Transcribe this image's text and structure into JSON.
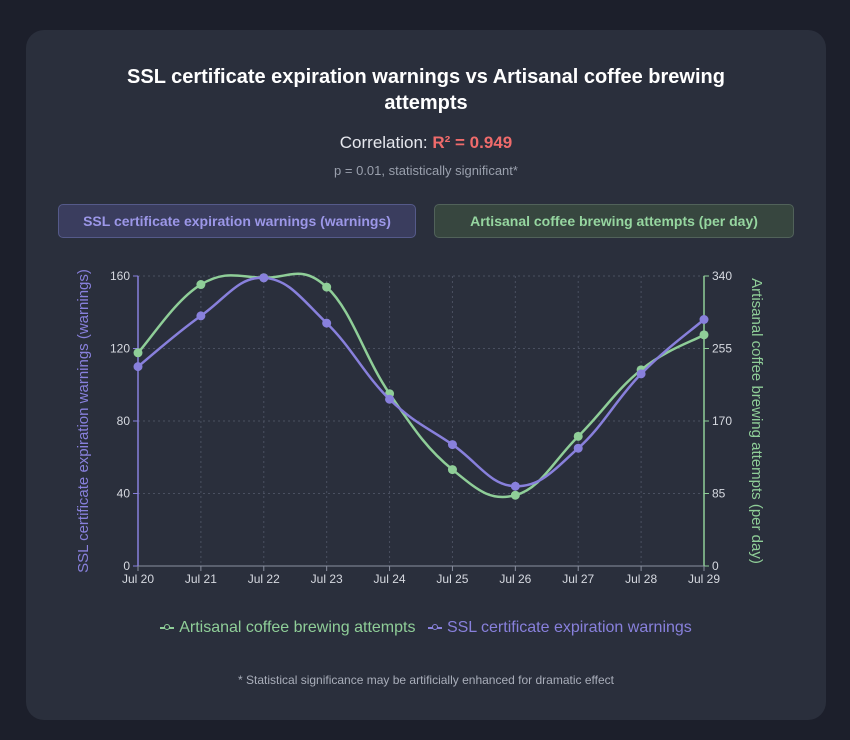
{
  "header": {
    "title": "SSL certificate expiration warnings vs Artisanal coffee brewing attempts",
    "correlation_label": "Correlation:",
    "r_squared": "R² = 0.949",
    "p_value_text": "p = 0.01, statistically significant*"
  },
  "toggles": {
    "ssl_label": "SSL certificate expiration warnings (warnings)",
    "coffee_label": "Artisanal coffee brewing attempts (per day)"
  },
  "colors": {
    "ssl": "#8880dc",
    "coffee": "#8fce98",
    "r_squared": "#ef6b6b"
  },
  "footnote": "* Statistical significance may be artificially enhanced for dramatic effect",
  "chart_data": {
    "type": "line",
    "categories": [
      "Jul 20",
      "Jul 21",
      "Jul 22",
      "Jul 23",
      "Jul 24",
      "Jul 25",
      "Jul 26",
      "Jul 27",
      "Jul 28",
      "Jul 29"
    ],
    "series": [
      {
        "name": "SSL certificate expiration warnings",
        "axis": "left",
        "color": "#8880dc",
        "values": [
          110,
          138,
          159,
          134,
          92,
          67,
          44,
          65,
          106,
          136
        ]
      },
      {
        "name": "Artisanal coffee brewing attempts",
        "axis": "right",
        "color": "#8fce98",
        "values": [
          250,
          330,
          338,
          327,
          202,
          113,
          83,
          152,
          230,
          271
        ]
      }
    ],
    "y_left": {
      "label": "SSL certificate expiration warnings (warnings)",
      "range": [
        0,
        160
      ],
      "ticks": [
        "0",
        "40",
        "80",
        "120",
        "160"
      ]
    },
    "y_right": {
      "label": "Artisanal coffee brewing attempts (per day)",
      "range": [
        0,
        340
      ],
      "ticks": [
        "0",
        "85",
        "170",
        "255",
        "340"
      ]
    },
    "legend": [
      "Artisanal coffee brewing attempts",
      "SSL certificate expiration warnings"
    ],
    "grid": true
  }
}
